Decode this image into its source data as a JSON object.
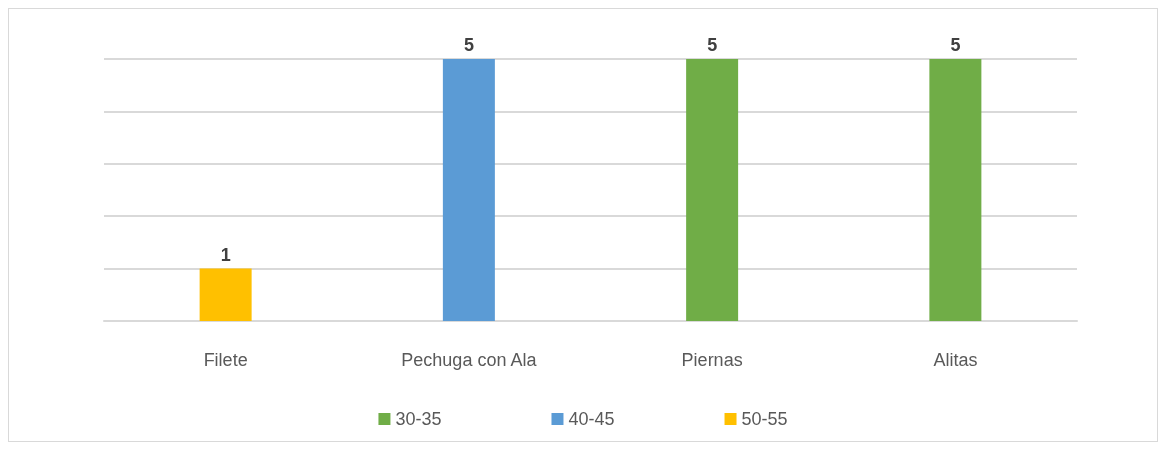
{
  "chart_data": {
    "type": "bar",
    "categories": [
      "Filete",
      "Pechuga con Ala",
      "Piernas",
      "Alitas"
    ],
    "series": [
      {
        "name": "30-35",
        "color": "#70ad47",
        "values": [
          null,
          null,
          5,
          5
        ]
      },
      {
        "name": "40-45",
        "color": "#5b9bd5",
        "values": [
          null,
          5,
          null,
          null
        ]
      },
      {
        "name": "50-55",
        "color": "#ffc000",
        "values": [
          1,
          null,
          null,
          null
        ]
      }
    ],
    "stacked": true,
    "ylim": [
      0,
      5
    ],
    "yticks": [
      {
        "value": 0,
        "label": null
      },
      {
        "value": 1,
        "label": null
      },
      {
        "value": 2,
        "label": null
      },
      {
        "value": 3,
        "label": null
      },
      {
        "value": 4,
        "label": null
      },
      {
        "value": 5,
        "label": null
      }
    ],
    "grid": "y",
    "legend": "bottom",
    "tick_labels": "x",
    "data_labels": true
  }
}
